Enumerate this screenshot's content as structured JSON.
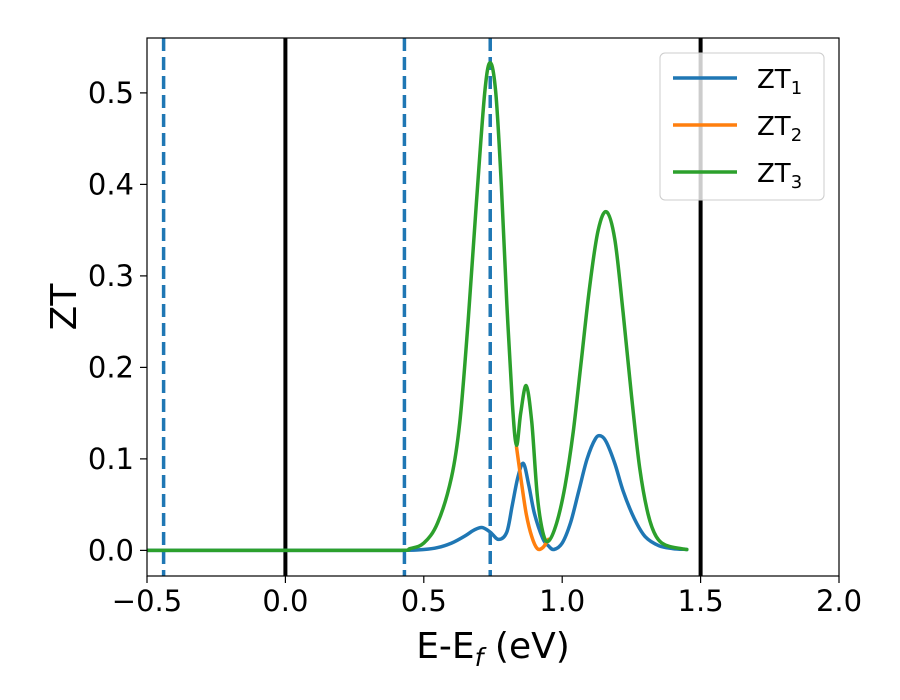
{
  "chart_data": {
    "type": "line",
    "xlabel_main": "E-E",
    "xlabel_sub": "f",
    "xlabel_unit": " (eV)",
    "ylabel": "ZT",
    "xlim": [
      -0.5,
      2.0
    ],
    "ylim": [
      -0.028,
      0.56
    ],
    "xticks": [
      -0.5,
      0.0,
      0.5,
      1.0,
      1.5,
      2.0
    ],
    "xtick_labels": [
      "−0.5",
      "0.0",
      "0.5",
      "1.0",
      "1.5",
      "2.0"
    ],
    "yticks": [
      0.0,
      0.1,
      0.2,
      0.3,
      0.4,
      0.5
    ],
    "ytick_labels": [
      "0.0",
      "0.1",
      "0.2",
      "0.3",
      "0.4",
      "0.5"
    ],
    "grid": false,
    "legend_position": "top-right",
    "vertical_lines": [
      {
        "x": -0.44,
        "style": "dashed",
        "color": "#1f77b4"
      },
      {
        "x": 0.0,
        "style": "solid",
        "color": "#000000"
      },
      {
        "x": 0.43,
        "style": "dashed",
        "color": "#1f77b4"
      },
      {
        "x": 0.74,
        "style": "dashed",
        "color": "#1f77b4"
      },
      {
        "x": 1.5,
        "style": "solid",
        "color": "#000000"
      }
    ],
    "series": [
      {
        "name": "ZT",
        "sub": "1",
        "color": "#1f77b4",
        "x": [
          -0.5,
          0.0,
          0.4,
          0.5,
          0.55,
          0.6,
          0.65,
          0.68,
          0.71,
          0.74,
          0.77,
          0.8,
          0.82,
          0.84,
          0.86,
          0.88,
          0.9,
          0.93,
          0.95,
          0.97,
          1.0,
          1.03,
          1.06,
          1.09,
          1.12,
          1.14,
          1.16,
          1.19,
          1.22,
          1.26,
          1.3,
          1.35,
          1.4,
          1.45
        ],
        "y": [
          0.0,
          0.0,
          0.0,
          0.001,
          0.003,
          0.008,
          0.016,
          0.022,
          0.025,
          0.02,
          0.012,
          0.02,
          0.05,
          0.08,
          0.095,
          0.07,
          0.04,
          0.013,
          0.005,
          0.001,
          0.008,
          0.03,
          0.065,
          0.1,
          0.122,
          0.125,
          0.118,
          0.095,
          0.065,
          0.035,
          0.015,
          0.005,
          0.002,
          0.001
        ]
      },
      {
        "name": "ZT",
        "sub": "2",
        "color": "#ff7f0e",
        "x": [
          0.835,
          0.85,
          0.87,
          0.89,
          0.91,
          0.93,
          0.95
        ],
        "y": [
          0.113,
          0.08,
          0.04,
          0.015,
          0.002,
          0.003,
          0.012
        ]
      },
      {
        "name": "ZT",
        "sub": "3",
        "color": "#2ca02c",
        "x": [
          -0.5,
          0.0,
          0.4,
          0.45,
          0.5,
          0.55,
          0.6,
          0.63,
          0.66,
          0.69,
          0.72,
          0.74,
          0.76,
          0.78,
          0.8,
          0.82,
          0.835,
          0.85,
          0.87,
          0.89,
          0.91,
          0.93,
          0.95,
          0.98,
          1.01,
          1.04,
          1.07,
          1.1,
          1.13,
          1.16,
          1.19,
          1.22,
          1.25,
          1.28,
          1.31,
          1.34,
          1.38,
          1.45
        ],
        "y": [
          0.0,
          0.0,
          0.0,
          0.002,
          0.008,
          0.03,
          0.08,
          0.14,
          0.25,
          0.38,
          0.5,
          0.533,
          0.5,
          0.4,
          0.27,
          0.16,
          0.115,
          0.15,
          0.18,
          0.14,
          0.06,
          0.02,
          0.01,
          0.03,
          0.07,
          0.13,
          0.21,
          0.29,
          0.35,
          0.37,
          0.34,
          0.26,
          0.17,
          0.09,
          0.04,
          0.015,
          0.005,
          0.001
        ]
      }
    ]
  }
}
